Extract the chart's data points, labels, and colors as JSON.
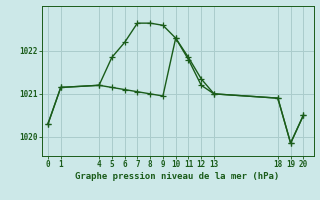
{
  "background_color": "#cce8e8",
  "grid_color": "#aacccc",
  "line_color": "#1a5c1a",
  "title": "Graphe pression niveau de la mer (hPa)",
  "series1_x": [
    0,
    1,
    4,
    5,
    6,
    7,
    8,
    9,
    10,
    11,
    12,
    13,
    18,
    19,
    20
  ],
  "series1_y": [
    1020.3,
    1021.15,
    1021.2,
    1021.85,
    1022.2,
    1022.65,
    1022.65,
    1022.6,
    1022.3,
    1021.85,
    1021.35,
    1021.0,
    1020.9,
    1019.85,
    1020.5
  ],
  "series2_x": [
    0,
    1,
    4,
    5,
    6,
    7,
    8,
    9,
    10,
    11,
    12,
    13,
    18,
    19,
    20
  ],
  "series2_y": [
    1020.3,
    1021.15,
    1021.2,
    1021.15,
    1021.1,
    1021.05,
    1021.0,
    1020.95,
    1022.3,
    1021.8,
    1021.2,
    1021.0,
    1020.9,
    1019.85,
    1020.5
  ],
  "xticks": [
    0,
    1,
    4,
    5,
    6,
    7,
    8,
    9,
    10,
    11,
    12,
    13,
    18,
    19,
    20
  ],
  "yticks": [
    1020,
    1021,
    1022
  ],
  "xlim": [
    -0.5,
    20.8
  ],
  "ylim": [
    1019.55,
    1023.05
  ],
  "marker": "+",
  "markersize": 4,
  "linewidth": 1.0,
  "title_fontsize": 6.5,
  "tick_fontsize": 5.5
}
